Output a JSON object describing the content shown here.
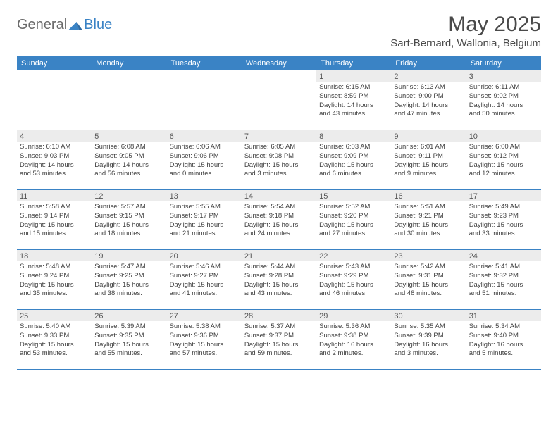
{
  "brand": {
    "word1": "General",
    "word2": "Blue"
  },
  "title": "May 2025",
  "location": "Sart-Bernard, Wallonia, Belgium",
  "colors": {
    "accent": "#3a83c5",
    "header_text": "#4a4a4a",
    "day_bg": "#ececec",
    "body_text": "#3f3f3f",
    "logo_gray": "#6a6a6a"
  },
  "weekdays": [
    "Sunday",
    "Monday",
    "Tuesday",
    "Wednesday",
    "Thursday",
    "Friday",
    "Saturday"
  ],
  "weeks": [
    [
      {
        "n": "",
        "empty": true
      },
      {
        "n": "",
        "empty": true
      },
      {
        "n": "",
        "empty": true
      },
      {
        "n": "",
        "empty": true
      },
      {
        "n": "1",
        "sunrise": "Sunrise: 6:15 AM",
        "sunset": "Sunset: 8:59 PM",
        "d1": "Daylight: 14 hours",
        "d2": "and 43 minutes."
      },
      {
        "n": "2",
        "sunrise": "Sunrise: 6:13 AM",
        "sunset": "Sunset: 9:00 PM",
        "d1": "Daylight: 14 hours",
        "d2": "and 47 minutes."
      },
      {
        "n": "3",
        "sunrise": "Sunrise: 6:11 AM",
        "sunset": "Sunset: 9:02 PM",
        "d1": "Daylight: 14 hours",
        "d2": "and 50 minutes."
      }
    ],
    [
      {
        "n": "4",
        "sunrise": "Sunrise: 6:10 AM",
        "sunset": "Sunset: 9:03 PM",
        "d1": "Daylight: 14 hours",
        "d2": "and 53 minutes."
      },
      {
        "n": "5",
        "sunrise": "Sunrise: 6:08 AM",
        "sunset": "Sunset: 9:05 PM",
        "d1": "Daylight: 14 hours",
        "d2": "and 56 minutes."
      },
      {
        "n": "6",
        "sunrise": "Sunrise: 6:06 AM",
        "sunset": "Sunset: 9:06 PM",
        "d1": "Daylight: 15 hours",
        "d2": "and 0 minutes."
      },
      {
        "n": "7",
        "sunrise": "Sunrise: 6:05 AM",
        "sunset": "Sunset: 9:08 PM",
        "d1": "Daylight: 15 hours",
        "d2": "and 3 minutes."
      },
      {
        "n": "8",
        "sunrise": "Sunrise: 6:03 AM",
        "sunset": "Sunset: 9:09 PM",
        "d1": "Daylight: 15 hours",
        "d2": "and 6 minutes."
      },
      {
        "n": "9",
        "sunrise": "Sunrise: 6:01 AM",
        "sunset": "Sunset: 9:11 PM",
        "d1": "Daylight: 15 hours",
        "d2": "and 9 minutes."
      },
      {
        "n": "10",
        "sunrise": "Sunrise: 6:00 AM",
        "sunset": "Sunset: 9:12 PM",
        "d1": "Daylight: 15 hours",
        "d2": "and 12 minutes."
      }
    ],
    [
      {
        "n": "11",
        "sunrise": "Sunrise: 5:58 AM",
        "sunset": "Sunset: 9:14 PM",
        "d1": "Daylight: 15 hours",
        "d2": "and 15 minutes."
      },
      {
        "n": "12",
        "sunrise": "Sunrise: 5:57 AM",
        "sunset": "Sunset: 9:15 PM",
        "d1": "Daylight: 15 hours",
        "d2": "and 18 minutes."
      },
      {
        "n": "13",
        "sunrise": "Sunrise: 5:55 AM",
        "sunset": "Sunset: 9:17 PM",
        "d1": "Daylight: 15 hours",
        "d2": "and 21 minutes."
      },
      {
        "n": "14",
        "sunrise": "Sunrise: 5:54 AM",
        "sunset": "Sunset: 9:18 PM",
        "d1": "Daylight: 15 hours",
        "d2": "and 24 minutes."
      },
      {
        "n": "15",
        "sunrise": "Sunrise: 5:52 AM",
        "sunset": "Sunset: 9:20 PM",
        "d1": "Daylight: 15 hours",
        "d2": "and 27 minutes."
      },
      {
        "n": "16",
        "sunrise": "Sunrise: 5:51 AM",
        "sunset": "Sunset: 9:21 PM",
        "d1": "Daylight: 15 hours",
        "d2": "and 30 minutes."
      },
      {
        "n": "17",
        "sunrise": "Sunrise: 5:49 AM",
        "sunset": "Sunset: 9:23 PM",
        "d1": "Daylight: 15 hours",
        "d2": "and 33 minutes."
      }
    ],
    [
      {
        "n": "18",
        "sunrise": "Sunrise: 5:48 AM",
        "sunset": "Sunset: 9:24 PM",
        "d1": "Daylight: 15 hours",
        "d2": "and 35 minutes."
      },
      {
        "n": "19",
        "sunrise": "Sunrise: 5:47 AM",
        "sunset": "Sunset: 9:25 PM",
        "d1": "Daylight: 15 hours",
        "d2": "and 38 minutes."
      },
      {
        "n": "20",
        "sunrise": "Sunrise: 5:46 AM",
        "sunset": "Sunset: 9:27 PM",
        "d1": "Daylight: 15 hours",
        "d2": "and 41 minutes."
      },
      {
        "n": "21",
        "sunrise": "Sunrise: 5:44 AM",
        "sunset": "Sunset: 9:28 PM",
        "d1": "Daylight: 15 hours",
        "d2": "and 43 minutes."
      },
      {
        "n": "22",
        "sunrise": "Sunrise: 5:43 AM",
        "sunset": "Sunset: 9:29 PM",
        "d1": "Daylight: 15 hours",
        "d2": "and 46 minutes."
      },
      {
        "n": "23",
        "sunrise": "Sunrise: 5:42 AM",
        "sunset": "Sunset: 9:31 PM",
        "d1": "Daylight: 15 hours",
        "d2": "and 48 minutes."
      },
      {
        "n": "24",
        "sunrise": "Sunrise: 5:41 AM",
        "sunset": "Sunset: 9:32 PM",
        "d1": "Daylight: 15 hours",
        "d2": "and 51 minutes."
      }
    ],
    [
      {
        "n": "25",
        "sunrise": "Sunrise: 5:40 AM",
        "sunset": "Sunset: 9:33 PM",
        "d1": "Daylight: 15 hours",
        "d2": "and 53 minutes."
      },
      {
        "n": "26",
        "sunrise": "Sunrise: 5:39 AM",
        "sunset": "Sunset: 9:35 PM",
        "d1": "Daylight: 15 hours",
        "d2": "and 55 minutes."
      },
      {
        "n": "27",
        "sunrise": "Sunrise: 5:38 AM",
        "sunset": "Sunset: 9:36 PM",
        "d1": "Daylight: 15 hours",
        "d2": "and 57 minutes."
      },
      {
        "n": "28",
        "sunrise": "Sunrise: 5:37 AM",
        "sunset": "Sunset: 9:37 PM",
        "d1": "Daylight: 15 hours",
        "d2": "and 59 minutes."
      },
      {
        "n": "29",
        "sunrise": "Sunrise: 5:36 AM",
        "sunset": "Sunset: 9:38 PM",
        "d1": "Daylight: 16 hours",
        "d2": "and 2 minutes."
      },
      {
        "n": "30",
        "sunrise": "Sunrise: 5:35 AM",
        "sunset": "Sunset: 9:39 PM",
        "d1": "Daylight: 16 hours",
        "d2": "and 3 minutes."
      },
      {
        "n": "31",
        "sunrise": "Sunrise: 5:34 AM",
        "sunset": "Sunset: 9:40 PM",
        "d1": "Daylight: 16 hours",
        "d2": "and 5 minutes."
      }
    ]
  ]
}
